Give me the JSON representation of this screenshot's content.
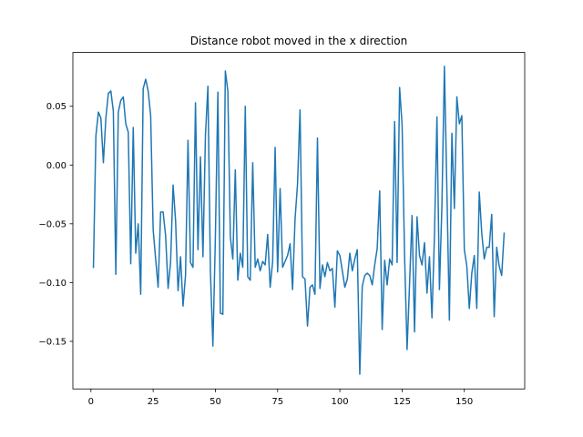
{
  "chart_data": {
    "type": "line",
    "title": "Distance robot moved in the x direction",
    "xlabel": "",
    "ylabel": "",
    "xlim": [
      -7.25,
      174.25
    ],
    "ylim": [
      -0.1905,
      0.0958
    ],
    "xticks": [
      0,
      25,
      50,
      75,
      100,
      125,
      150
    ],
    "yticks": [
      -0.15,
      -0.1,
      -0.05,
      0.0,
      0.05
    ],
    "ytick_labels": [
      "−0.15",
      "−0.10",
      "−0.05",
      "0.00",
      "0.05"
    ],
    "grid": false,
    "legend": "none",
    "line_color": "#1f77b4",
    "series": [
      {
        "x_start": 1,
        "x_step": 1,
        "values": [
          -0.087,
          0.025,
          0.045,
          0.04,
          0.002,
          0.04,
          0.061,
          0.063,
          0.046,
          -0.093,
          0.045,
          0.055,
          0.058,
          0.035,
          0.028,
          -0.084,
          0.032,
          -0.075,
          -0.05,
          -0.11,
          0.065,
          0.073,
          0.063,
          0.042,
          -0.055,
          -0.08,
          -0.104,
          -0.04,
          -0.04,
          -0.06,
          -0.105,
          -0.083,
          -0.017,
          -0.047,
          -0.107,
          -0.078,
          -0.12,
          -0.094,
          0.021,
          -0.083,
          -0.087,
          0.053,
          -0.072,
          0.007,
          -0.078,
          0.025,
          0.067,
          -0.09,
          -0.154,
          -0.061,
          0.062,
          -0.126,
          -0.127,
          0.08,
          0.063,
          -0.061,
          -0.08,
          -0.004,
          -0.098,
          -0.075,
          -0.087,
          0.05,
          -0.095,
          -0.098,
          0.002,
          -0.087,
          -0.08,
          -0.09,
          -0.082,
          -0.085,
          -0.059,
          -0.104,
          -0.082,
          0.015,
          -0.091,
          -0.02,
          -0.087,
          -0.082,
          -0.077,
          -0.067,
          -0.106,
          -0.046,
          -0.016,
          0.047,
          -0.095,
          -0.097,
          -0.137,
          -0.104,
          -0.102,
          -0.11,
          0.023,
          -0.105,
          -0.085,
          -0.095,
          -0.083,
          -0.09,
          -0.088,
          -0.121,
          -0.073,
          -0.077,
          -0.09,
          -0.104,
          -0.097,
          -0.075,
          -0.09,
          -0.08,
          -0.072,
          -0.178,
          -0.103,
          -0.094,
          -0.092,
          -0.094,
          -0.102,
          -0.085,
          -0.071,
          -0.022,
          -0.14,
          -0.081,
          -0.102,
          -0.08,
          -0.085,
          0.037,
          -0.083,
          0.066,
          0.034,
          -0.077,
          -0.157,
          -0.101,
          -0.043,
          -0.142,
          -0.044,
          -0.077,
          -0.085,
          -0.066,
          -0.109,
          -0.078,
          -0.13,
          -0.06,
          0.041,
          -0.106,
          -0.034,
          0.084,
          -0.022,
          -0.132,
          0.027,
          -0.037,
          0.058,
          0.035,
          0.042,
          -0.072,
          -0.086,
          -0.122,
          -0.092,
          -0.077,
          -0.122,
          -0.023,
          -0.058,
          -0.08,
          -0.07,
          -0.07,
          -0.042,
          -0.129,
          -0.07,
          -0.086,
          -0.094,
          -0.058
        ]
      }
    ]
  }
}
